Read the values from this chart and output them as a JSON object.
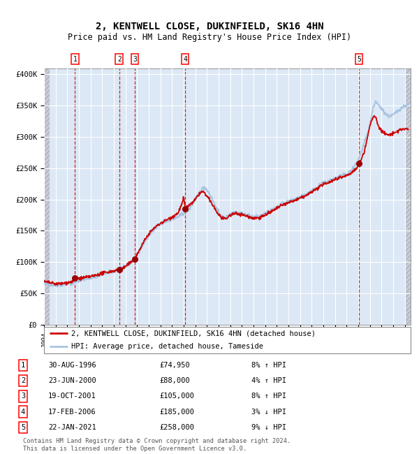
{
  "title": "2, KENTWELL CLOSE, DUKINFIELD, SK16 4HN",
  "subtitle": "Price paid vs. HM Land Registry's House Price Index (HPI)",
  "sale_dates_year": [
    1996.66,
    2000.47,
    2001.8,
    2006.12,
    2021.06
  ],
  "sale_prices": [
    74950,
    88000,
    105000,
    185000,
    258000
  ],
  "sale_labels": [
    "1",
    "2",
    "3",
    "4",
    "5"
  ],
  "legend_line1": "2, KENTWELL CLOSE, DUKINFIELD, SK16 4HN (detached house)",
  "legend_line2": "HPI: Average price, detached house, Tameside",
  "table_rows": [
    [
      "1",
      "30-AUG-1996",
      "£74,950",
      "8% ↑ HPI"
    ],
    [
      "2",
      "23-JUN-2000",
      "£88,000",
      "4% ↑ HPI"
    ],
    [
      "3",
      "19-OCT-2001",
      "£105,000",
      "8% ↑ HPI"
    ],
    [
      "4",
      "17-FEB-2006",
      "£185,000",
      "3% ↓ HPI"
    ],
    [
      "5",
      "22-JAN-2021",
      "£258,000",
      "9% ↓ HPI"
    ]
  ],
  "footer": "Contains HM Land Registry data © Crown copyright and database right 2024.\nThis data is licensed under the Open Government Licence v3.0.",
  "hpi_color": "#a8c4e0",
  "price_color": "#cc0000",
  "dot_color": "#990000",
  "vline_color": "#cc0000",
  "bg_chart": "#dce8f5",
  "ylim_max": 400000,
  "xlim_start": 1994.0,
  "xlim_end": 2025.5
}
